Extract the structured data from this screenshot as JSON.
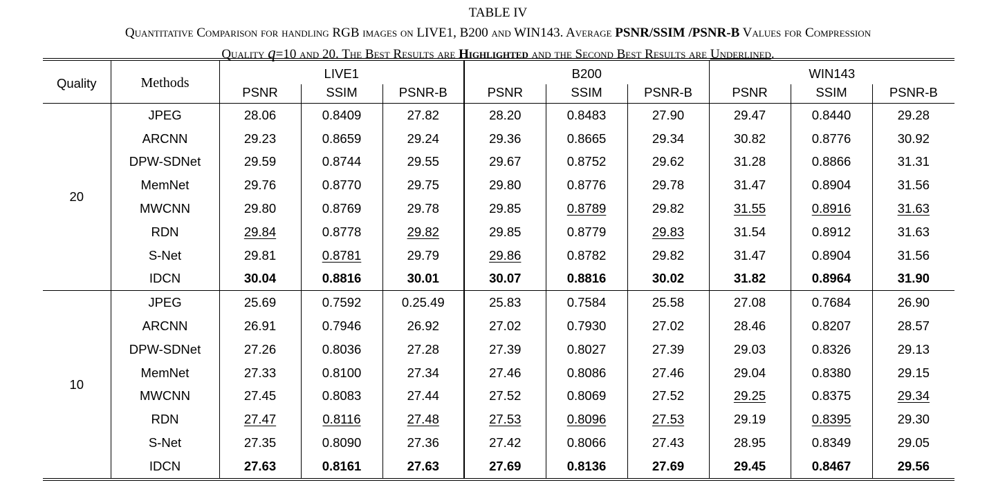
{
  "caption": {
    "line1": "TABLE IV",
    "line2_a": "Quantitative Comparison for handling RGB images on LIVE1, B200 and WIN143. Average ",
    "line2_b": "PSNR/SSIM /PSNR-B",
    "line2_c": " Values for Compression",
    "line3_a": "Quality ",
    "line3_q": "q",
    "line3_b": "=10 and 20. The Best Results are ",
    "line3_c": "Highlighted",
    "line3_d": " and the Second Best Results are ",
    "line3_e": "Underlined",
    "line3_f": "."
  },
  "header": {
    "quality": "Quality",
    "methods": "Methods",
    "datasets": [
      "LIVE1",
      "B200",
      "WIN143"
    ],
    "metrics": [
      "PSNR",
      "SSIM",
      "PSNR-B"
    ]
  },
  "groups": [
    {
      "quality": "20",
      "rows": [
        {
          "method": "JPEG",
          "values": [
            "28.06",
            "0.8409",
            "27.82",
            "28.20",
            "0.8483",
            "27.90",
            "29.47",
            "0.8440",
            "29.28"
          ]
        },
        {
          "method": "ARCNN",
          "values": [
            "29.23",
            "0.8659",
            "29.24",
            "29.36",
            "0.8665",
            "29.34",
            "30.82",
            "0.8776",
            "30.92"
          ]
        },
        {
          "method": "DPW-SDNet",
          "values": [
            "29.59",
            "0.8744",
            "29.55",
            "29.67",
            "0.8752",
            "29.62",
            "31.28",
            "0.8866",
            "31.31"
          ]
        },
        {
          "method": "MemNet",
          "values": [
            "29.76",
            "0.8770",
            "29.75",
            "29.80",
            "0.8776",
            "29.78",
            "31.47",
            "0.8904",
            "31.56"
          ]
        },
        {
          "method": "MWCNN",
          "values": [
            "29.80",
            "0.8769",
            "29.78",
            "29.85",
            "0.8789",
            "29.82",
            "31.55",
            "0.8916",
            "31.63"
          ]
        },
        {
          "method": "RDN",
          "values": [
            "29.84",
            "0.8778",
            "29.82",
            "29.85",
            "0.8779",
            "29.83",
            "31.54",
            "0.8912",
            "31.63"
          ]
        },
        {
          "method": "S-Net",
          "values": [
            "29.81",
            "0.8781",
            "29.79",
            "29.86",
            "0.8782",
            "29.82",
            "31.47",
            "0.8904",
            "31.56"
          ]
        },
        {
          "method": "IDCN",
          "values": [
            "30.04",
            "0.8816",
            "30.01",
            "30.07",
            "0.8816",
            "30.02",
            "31.82",
            "0.8964",
            "31.90"
          ]
        }
      ]
    },
    {
      "quality": "10",
      "rows": [
        {
          "method": "JPEG",
          "values": [
            "25.69",
            "0.7592",
            "0.25.49",
            "25.83",
            "0.7584",
            "25.58",
            "27.08",
            "0.7684",
            "26.90"
          ]
        },
        {
          "method": "ARCNN",
          "values": [
            "26.91",
            "0.7946",
            "26.92",
            "27.02",
            "0.7930",
            "27.02",
            "28.46",
            "0.8207",
            "28.57"
          ]
        },
        {
          "method": "DPW-SDNet",
          "values": [
            "27.26",
            "0.8036",
            "27.28",
            "27.39",
            "0.8027",
            "27.39",
            "29.03",
            "0.8326",
            "29.13"
          ]
        },
        {
          "method": "MemNet",
          "values": [
            "27.33",
            "0.8100",
            "27.34",
            "27.46",
            "0.8086",
            "27.46",
            "29.04",
            "0.8380",
            "29.15"
          ]
        },
        {
          "method": "MWCNN",
          "values": [
            "27.45",
            "0.8083",
            "27.44",
            "27.52",
            "0.8069",
            "27.52",
            "29.25",
            "0.8375",
            "29.34"
          ]
        },
        {
          "method": "RDN",
          "values": [
            "27.47",
            "0.8116",
            "27.48",
            "27.53",
            "0.8096",
            "27.53",
            "29.19",
            "0.8395",
            "29.30"
          ]
        },
        {
          "method": "S-Net",
          "values": [
            "27.35",
            "0.8090",
            "27.36",
            "27.42",
            "0.8066",
            "27.43",
            "28.95",
            "0.8349",
            "29.05"
          ]
        },
        {
          "method": "IDCN",
          "values": [
            "27.63",
            "0.8161",
            "27.63",
            "27.69",
            "0.8136",
            "27.69",
            "29.45",
            "0.8467",
            "29.56"
          ]
        }
      ]
    }
  ],
  "styling": {
    "bold_rows_method": "IDCN",
    "underlined": [
      {
        "group": 0,
        "method": "MWCNN",
        "cols": [
          4,
          6,
          7,
          8
        ]
      },
      {
        "group": 0,
        "method": "RDN",
        "cols": [
          0,
          2,
          5
        ]
      },
      {
        "group": 0,
        "method": "S-Net",
        "cols": [
          1,
          3
        ]
      },
      {
        "group": 1,
        "method": "MWCNN",
        "cols": [
          6,
          8
        ]
      },
      {
        "group": 1,
        "method": "RDN",
        "cols": [
          0,
          1,
          2,
          3,
          4,
          5,
          7
        ]
      }
    ]
  }
}
